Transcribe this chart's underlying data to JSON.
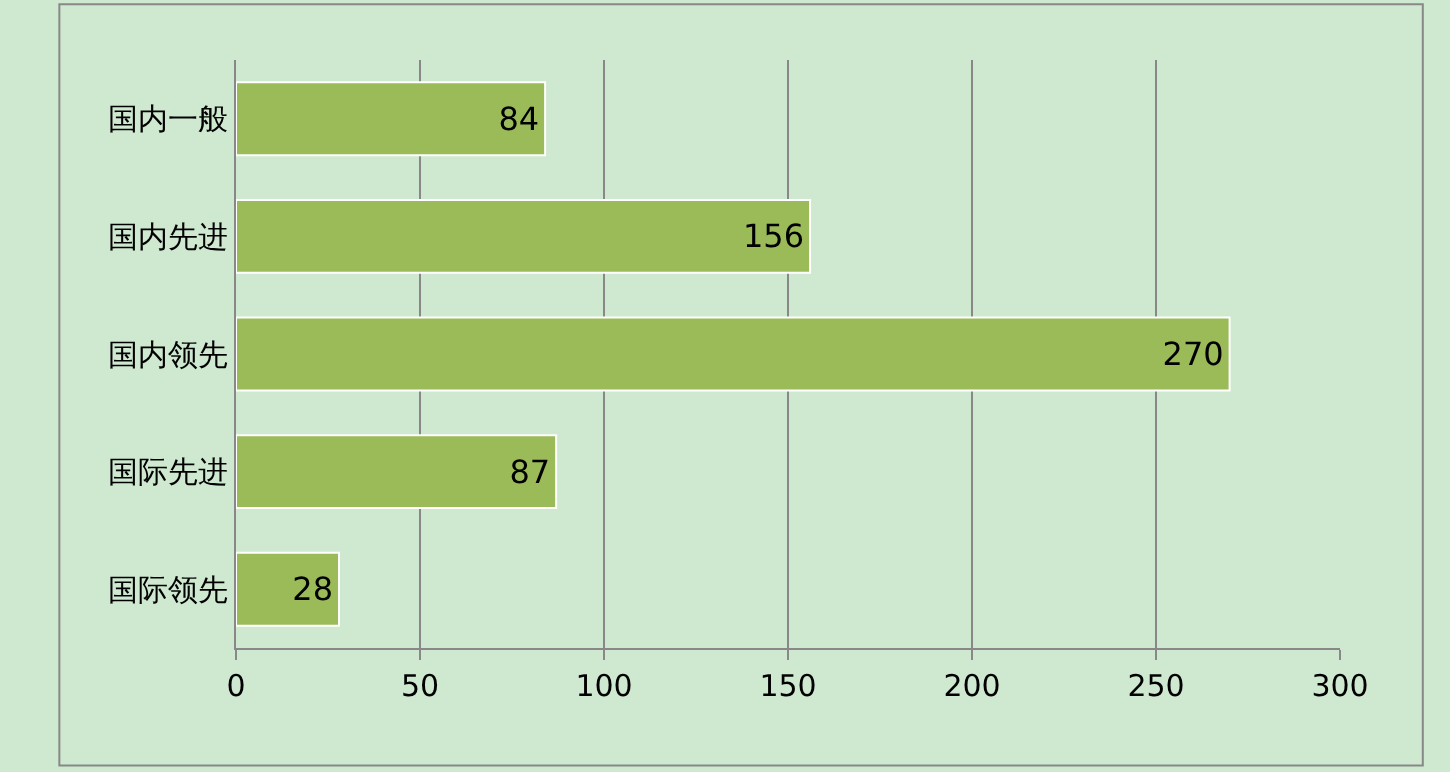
{
  "chart_data": {
    "type": "bar",
    "orientation": "horizontal",
    "categories": [
      "国内一般",
      "国内先进",
      "国内领先",
      "国际先进",
      "国际领先"
    ],
    "values": [
      84,
      156,
      270,
      87,
      28
    ],
    "color": "#9bbb59",
    "xlim": [
      0,
      300
    ],
    "xticks": [
      0,
      50,
      100,
      150,
      200,
      250,
      300
    ],
    "grid": "x",
    "data_labels": true
  }
}
